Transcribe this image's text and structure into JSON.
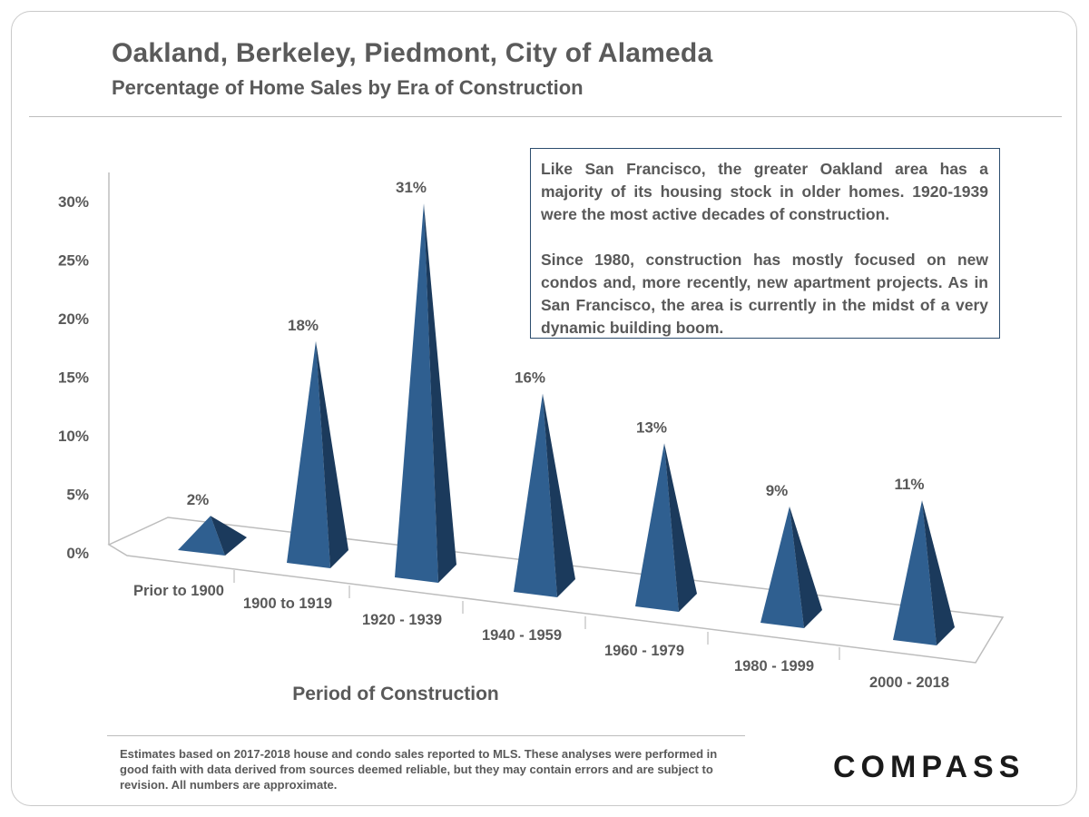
{
  "header": {
    "title": "Oakland, Berkeley, Piedmont, City of Alameda",
    "subtitle": "Percentage of Home Sales by Era of Construction"
  },
  "note": {
    "paragraph1": "Like San Francisco, the greater Oakland area has a majority of its housing stock in older homes. 1920-1939 were the most active decades of construction.",
    "paragraph2": "Since 1980, construction has mostly focused on new condos and, more recently, new apartment projects. As in San Francisco, the area is currently in the midst of a very dynamic building boom."
  },
  "footer": {
    "disclaimer": "Estimates based on 2017-2018 house and condo sales reported to MLS. These analyses were performed in good faith with data derived from sources deemed reliable, but they may contain errors and are subject to revision. All numbers are approximate.",
    "logo": "COMPASS"
  },
  "chart_data": {
    "type": "bar",
    "categories": [
      "Prior to 1900",
      "1900 to 1919",
      "1920 - 1939",
      "1940 - 1959",
      "1960 - 1979",
      "1980 - 1999",
      "2000 - 2018"
    ],
    "values": [
      2,
      18,
      31,
      16,
      13,
      9,
      11
    ],
    "data_labels": [
      "2%",
      "18%",
      "31%",
      "16%",
      "13%",
      "9%",
      "11%"
    ],
    "yticks": [
      "0%",
      "5%",
      "10%",
      "15%",
      "20%",
      "25%",
      "30%"
    ],
    "ylim": [
      0,
      30
    ],
    "xlabel": "Period of Construction",
    "ylabel": "",
    "grid": false,
    "colors": {
      "bar": "#27527f",
      "bar_shadow": "#1b3a5c",
      "bar_light": "#2f5f90"
    }
  }
}
